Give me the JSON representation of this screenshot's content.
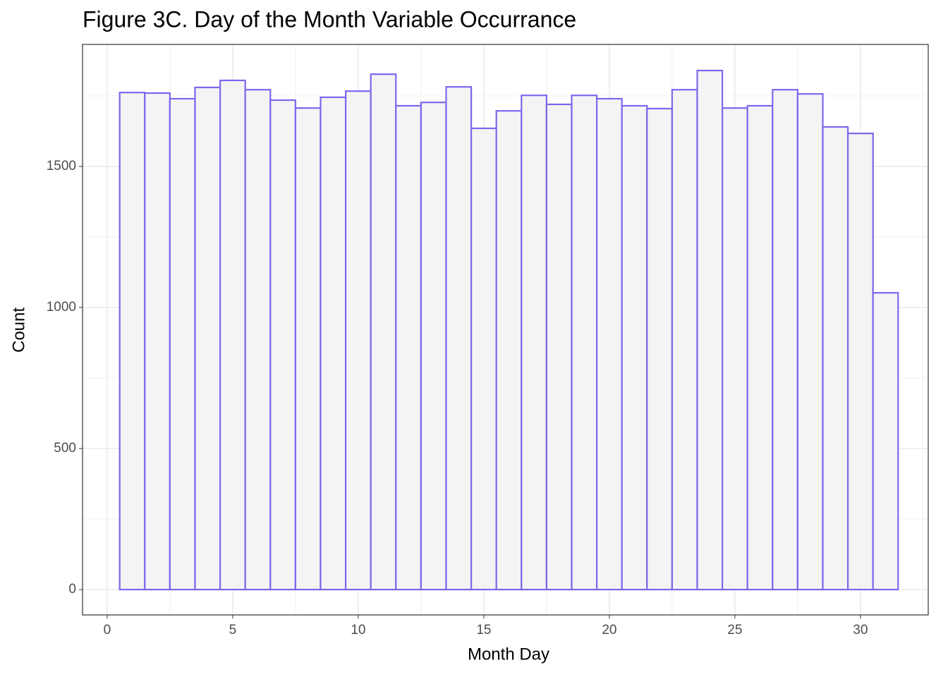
{
  "chart_data": {
    "type": "histogram",
    "title": "Figure 3C. Day of the Month Variable Occurrance",
    "x_label": "Month Day",
    "y_label": "Count",
    "bins": [
      0.5,
      1.5,
      2.5,
      3.5,
      4.5,
      5.5,
      6.5,
      7.5,
      8.5,
      9.5,
      10.5,
      11.5,
      12.5,
      13.5,
      14.5,
      15.5,
      16.5,
      17.5,
      18.5,
      19.5,
      20.5,
      21.5,
      22.5,
      23.5,
      24.5,
      25.5,
      26.5,
      27.5,
      28.5,
      29.5,
      30.5,
      31.5
    ],
    "values": [
      1762,
      1760,
      1740,
      1780,
      1805,
      1772,
      1735,
      1707,
      1745,
      1767,
      1827,
      1715,
      1727,
      1782,
      1635,
      1697,
      1752,
      1720,
      1752,
      1740,
      1715,
      1705,
      1772,
      1840,
      1707,
      1715,
      1772,
      1757,
      1640,
      1617,
      1052
    ],
    "color": "#7b68ee",
    "fill": "#f4f4f4",
    "xlim": [
      -0.98,
      32.7
    ],
    "ylim": [
      -90,
      1932.5
    ],
    "xticks": [
      0,
      5,
      10,
      15,
      20,
      25,
      30
    ],
    "yticks": [
      0,
      500,
      1000,
      1500
    ],
    "grid": true,
    "minor_grid": true
  }
}
